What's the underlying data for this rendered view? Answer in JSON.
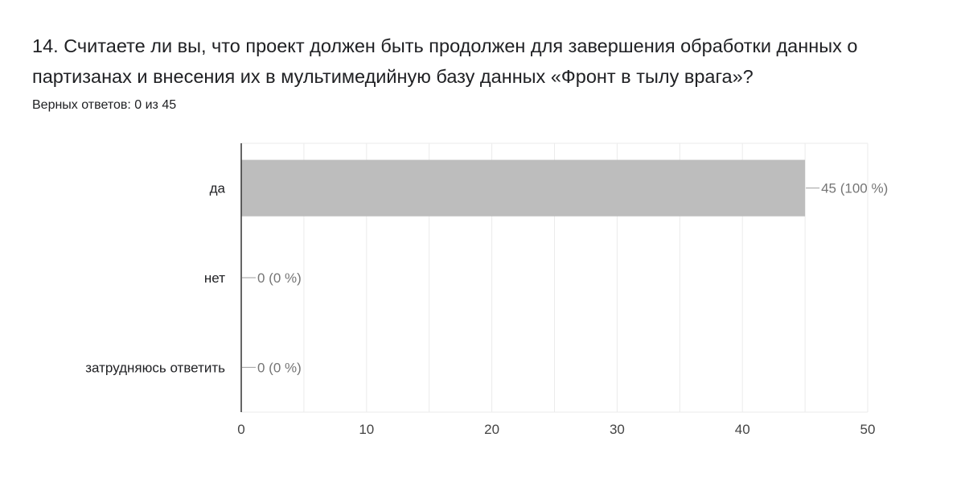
{
  "question": {
    "title": "14. Считаете ли вы, что проект должен быть продолжен для завершения обработки данных о партизанах и внесения их в мультимедийную базу данных «Фронт в тылу врага»?",
    "score": "Верных ответов: 0 из 45"
  },
  "colors": {
    "bar": "#bdbdbd",
    "grid": "#ebebeb",
    "axis": "#333333",
    "leader": "#9e9e9e"
  },
  "chart_data": {
    "type": "bar",
    "orientation": "horizontal",
    "categories": [
      "да",
      "нет",
      "затрудняюсь ответить"
    ],
    "values": [
      45,
      0,
      0
    ],
    "data_labels": [
      "45 (100 %)",
      "0 (0 %)",
      "0 (0 %)"
    ],
    "xlim": [
      0,
      50
    ],
    "xticks": [
      0,
      10,
      20,
      30,
      40,
      50
    ],
    "grid": true,
    "title": "",
    "xlabel": "",
    "ylabel": ""
  }
}
